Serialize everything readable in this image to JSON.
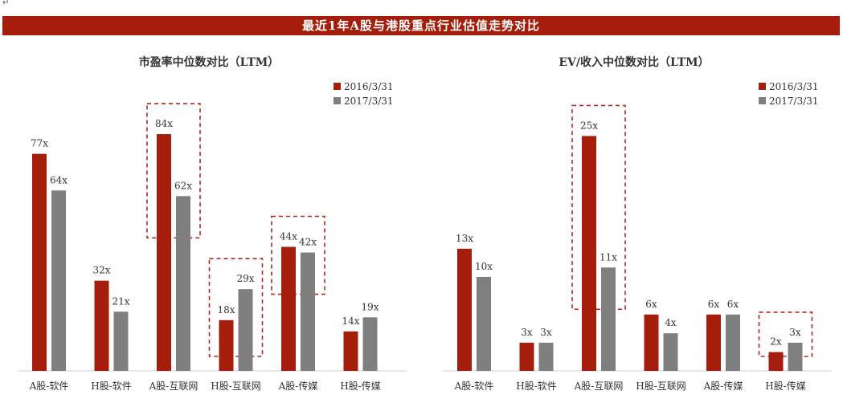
{
  "header": {
    "corner_mark": "↵",
    "banner_title": "最近1年A股与港股重点行业估值走势对比"
  },
  "colors": {
    "banner": "#a51d0b",
    "series_2016": "#a51d0b",
    "series_2017": "#7f7f7f",
    "highlight_box": "#b5261e",
    "axis": "#d0d0d0"
  },
  "chart_data": [
    {
      "type": "bar",
      "title": "市盈率中位数对比（LTM）",
      "categories": [
        "A股-软件",
        "H股-软件",
        "A股-互联网",
        "H股-互联网",
        "A股-传媒",
        "H股-传媒"
      ],
      "series": [
        {
          "name": "2016/3/31",
          "values": [
            77,
            32,
            84,
            18,
            44,
            14
          ],
          "labels": [
            "77x",
            "32x",
            "84x",
            "18x",
            "44x",
            "14x"
          ]
        },
        {
          "name": "2017/3/31",
          "values": [
            64,
            21,
            62,
            29,
            42,
            19
          ],
          "labels": [
            "64x",
            "21x",
            "62x",
            "29x",
            "42x",
            "19x"
          ]
        }
      ],
      "ylim": [
        0,
        90
      ],
      "highlighted_categories": [
        2,
        3,
        4
      ],
      "legend_position": "top-right",
      "grid": false
    },
    {
      "type": "bar",
      "title": "EV/收入中位数对比（LTM）",
      "categories": [
        "A股-软件",
        "H股-软件",
        "A股-互联网",
        "H股-互联网",
        "A股-传媒",
        "H股-传媒"
      ],
      "series": [
        {
          "name": "2016/3/31",
          "values": [
            13,
            3,
            25,
            6,
            6,
            2
          ],
          "labels": [
            "13x",
            "3x",
            "25x",
            "6x",
            "6x",
            "2x"
          ]
        },
        {
          "name": "2017/3/31",
          "values": [
            10,
            3,
            11,
            4,
            6,
            3
          ],
          "labels": [
            "10x",
            "3x",
            "11x",
            "4x",
            "6x",
            "3x"
          ]
        }
      ],
      "ylim": [
        0,
        27
      ],
      "highlighted_categories": [
        2,
        5
      ],
      "legend_position": "top-right",
      "grid": false
    }
  ]
}
